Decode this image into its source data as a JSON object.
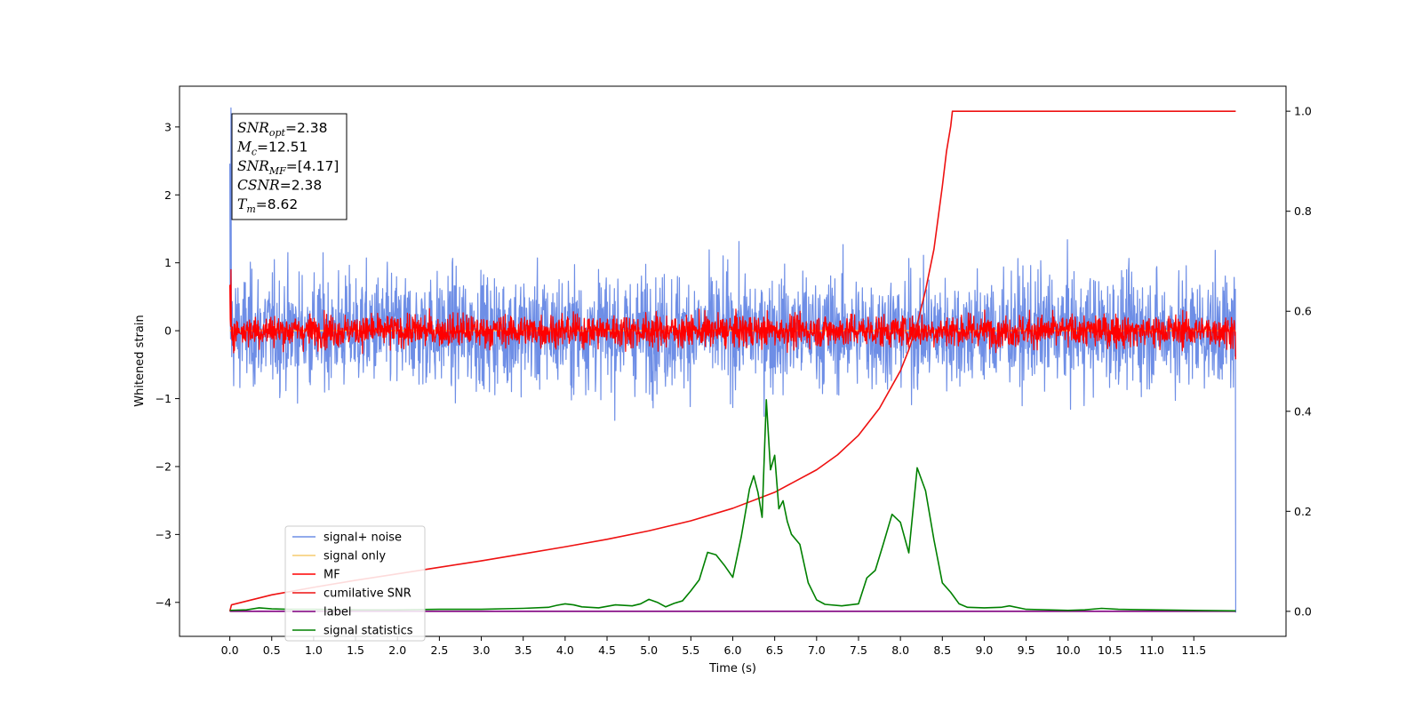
{
  "chart_data": {
    "type": "line",
    "xlabel": "Time (s)",
    "ylabel": "Whitened strain",
    "xlim": [
      -0.6,
      12.6
    ],
    "ylim": [
      -4.5,
      3.6
    ],
    "y2lim": [
      -0.05,
      1.05
    ],
    "x_ticks": [
      "0.0",
      "0.5",
      "1.0",
      "1.5",
      "2.0",
      "2.5",
      "3.0",
      "3.5",
      "4.0",
      "4.5",
      "5.0",
      "5.5",
      "6.0",
      "6.5",
      "7.0",
      "7.5",
      "8.0",
      "8.5",
      "9.0",
      "9.5",
      "10.0",
      "10.5",
      "11.0",
      "11.5"
    ],
    "y_ticks": [
      "3",
      "2",
      "1",
      "0",
      "−1",
      "−2",
      "−3",
      "−4"
    ],
    "y2_ticks": [
      "1.0",
      "0.8",
      "0.6",
      "0.4",
      "0.2",
      "0.0"
    ],
    "stats": [
      {
        "base": "SNR",
        "sub": "opt",
        "rest": "=2.38"
      },
      {
        "base": "M",
        "sub": "c",
        "rest": "=12.51"
      },
      {
        "base": "SNR",
        "sub": "MF",
        "rest": "=[4.17]"
      },
      {
        "base": "CSNR",
        "sub": "",
        "rest": "=2.38"
      },
      {
        "base": "T",
        "sub": "m",
        "rest": "=8.62"
      }
    ],
    "legend_position": "lower-left",
    "series": [
      {
        "name": "signal+ noise",
        "color": "#6e8ee6",
        "axis": "left",
        "kind": "noise",
        "x_range": [
          0,
          12
        ],
        "center": 0.0,
        "spread": 0.95,
        "extremes": [
          3.28,
          -4.15
        ]
      },
      {
        "name": "signal only",
        "color": "#f5cc6f",
        "axis": "left",
        "kind": "line",
        "x": [
          0,
          12
        ],
        "y": [
          0,
          0
        ]
      },
      {
        "name": "MF",
        "color": "#ff0000",
        "axis": "left",
        "kind": "noise",
        "x_range": [
          0,
          12
        ],
        "center": 0.0,
        "spread": 0.27,
        "extremes": [
          0.9,
          -0.42
        ]
      },
      {
        "name": "cumilative SNR",
        "color": "#ee1111",
        "axis": "right",
        "kind": "line",
        "x": [
          0,
          0.02,
          0.5,
          1,
          1.5,
          2,
          2.5,
          3,
          3.5,
          4,
          4.5,
          5,
          5.5,
          6,
          6.5,
          7,
          7.25,
          7.5,
          7.75,
          8,
          8.1,
          8.2,
          8.3,
          8.4,
          8.5,
          8.55,
          8.6,
          8.62,
          8.65,
          9,
          10,
          11,
          12
        ],
        "y": [
          0.0,
          0.013,
          0.033,
          0.048,
          0.062,
          0.075,
          0.088,
          0.101,
          0.115,
          0.129,
          0.144,
          0.161,
          0.181,
          0.206,
          0.238,
          0.283,
          0.313,
          0.352,
          0.406,
          0.481,
          0.523,
          0.574,
          0.642,
          0.724,
          0.85,
          0.92,
          0.97,
          1.0,
          1.0,
          1.0,
          1.0,
          1.0,
          1.0
        ]
      },
      {
        "name": "label",
        "color": "#800080",
        "axis": "right",
        "kind": "line",
        "x": [
          0,
          12
        ],
        "y": [
          0,
          0
        ]
      },
      {
        "name": "signal statistics",
        "color": "#008000",
        "axis": "right",
        "kind": "line",
        "x": [
          0,
          0.2,
          0.35,
          0.5,
          0.7,
          1,
          1.5,
          2,
          2.5,
          3,
          3.5,
          3.8,
          3.9,
          4,
          4.1,
          4.2,
          4.4,
          4.6,
          4.8,
          4.9,
          5,
          5.1,
          5.2,
          5.3,
          5.4,
          5.5,
          5.6,
          5.7,
          5.8,
          5.9,
          6,
          6.1,
          6.2,
          6.25,
          6.3,
          6.35,
          6.4,
          6.45,
          6.5,
          6.55,
          6.6,
          6.65,
          6.7,
          6.8,
          6.9,
          7,
          7.1,
          7.3,
          7.5,
          7.6,
          7.7,
          7.8,
          7.9,
          8,
          8.1,
          8.2,
          8.3,
          8.4,
          8.5,
          8.6,
          8.7,
          8.8,
          9,
          9.2,
          9.3,
          9.5,
          10,
          10.2,
          10.4,
          10.6,
          11,
          11.5,
          12
        ],
        "y": [
          0.002,
          0.003,
          0.007,
          0.005,
          0.004,
          0.004,
          0.003,
          0.003,
          0.004,
          0.004,
          0.006,
          0.008,
          0.012,
          0.015,
          0.013,
          0.009,
          0.007,
          0.013,
          0.011,
          0.015,
          0.024,
          0.018,
          0.009,
          0.016,
          0.021,
          0.041,
          0.063,
          0.118,
          0.113,
          0.092,
          0.068,
          0.148,
          0.245,
          0.271,
          0.238,
          0.188,
          0.423,
          0.283,
          0.312,
          0.205,
          0.221,
          0.18,
          0.154,
          0.134,
          0.057,
          0.023,
          0.014,
          0.011,
          0.015,
          0.067,
          0.082,
          0.137,
          0.194,
          0.178,
          0.117,
          0.287,
          0.241,
          0.143,
          0.057,
          0.038,
          0.015,
          0.008,
          0.007,
          0.008,
          0.011,
          0.004,
          0.002,
          0.003,
          0.006,
          0.004,
          0.003,
          0.002,
          0.001
        ]
      }
    ]
  }
}
